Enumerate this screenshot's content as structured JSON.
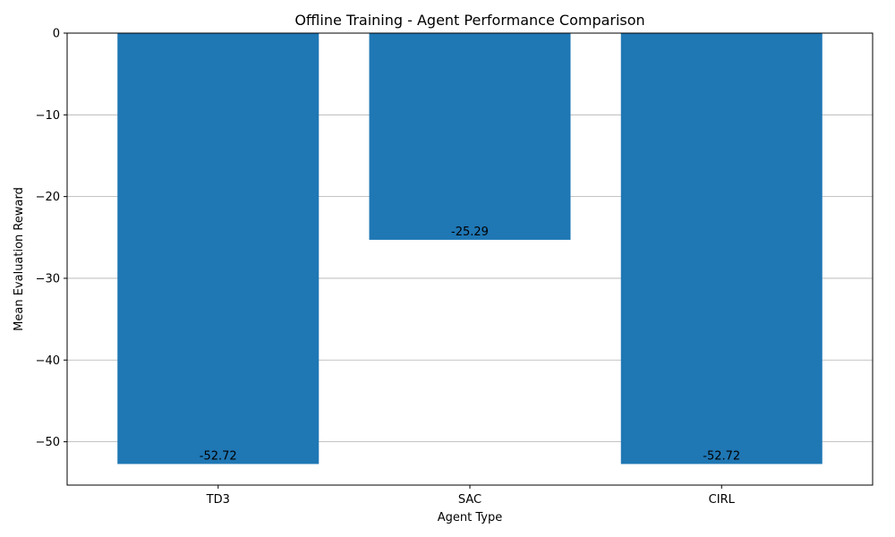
{
  "chart_data": {
    "type": "bar",
    "title": "Offline Training - Agent Performance Comparison",
    "xlabel": "Agent Type",
    "ylabel": "Mean Evaluation Reward",
    "categories": [
      "TD3",
      "SAC",
      "CIRL"
    ],
    "values": [
      -52.72,
      -25.29,
      -52.72
    ],
    "data_labels": [
      "-52.72",
      "-25.29",
      "-52.72"
    ],
    "ylim": [
      -55.3,
      0
    ],
    "yticks": [
      0,
      -10,
      -20,
      -30,
      -40,
      -50
    ],
    "ytick_labels": [
      "0",
      "−10",
      "−20",
      "−30",
      "−40",
      "−50"
    ],
    "grid": "y",
    "bar_color": "#1f77b4"
  }
}
